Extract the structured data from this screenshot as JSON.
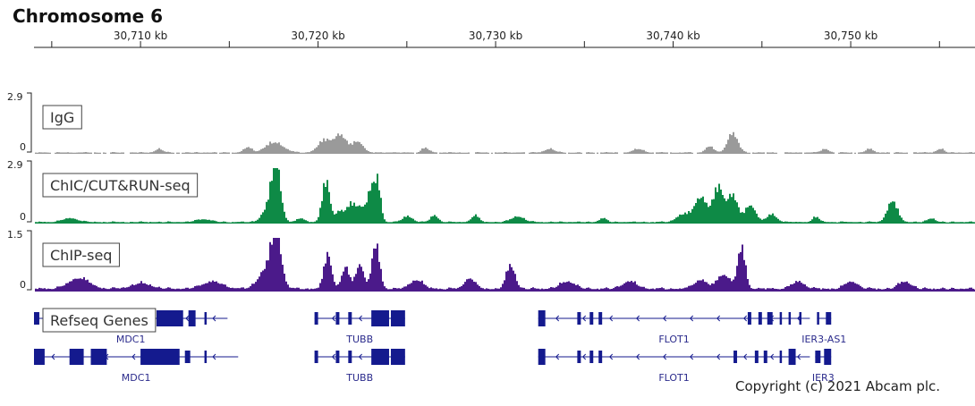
{
  "title": "Chromosome 6",
  "copyright": "Copyright (c) 2021 Abcam plc.",
  "colors": {
    "igg": "#9a9a9a",
    "chic": "#0e8a46",
    "chip": "#4b1a8a",
    "gene": "#141a8e"
  },
  "chart_data": {
    "type": "area",
    "x_unit": "kb",
    "xlim": [
      30704.0,
      30757.0
    ],
    "ruler_ticks": [
      {
        "value": 30710,
        "label": "30,710 kb"
      },
      {
        "value": 30720,
        "label": "30,720 kb"
      },
      {
        "value": 30730,
        "label": "30,730 kb"
      },
      {
        "value": 30740,
        "label": "30,740 kb"
      },
      {
        "value": 30750,
        "label": "30,750 kb"
      }
    ],
    "tracks": [
      {
        "name": "IgG",
        "color_key": "igg",
        "ymax_label": "2.9",
        "ymin_label": "0",
        "ymax": 2.9,
        "baseline": 0.1,
        "peaks": [
          {
            "x": 30711.0,
            "h": 0.2,
            "w": 0.3
          },
          {
            "x": 30716.0,
            "h": 0.3,
            "w": 0.3
          },
          {
            "x": 30717.5,
            "h": 0.55,
            "w": 0.7
          },
          {
            "x": 30720.3,
            "h": 0.65,
            "w": 0.5
          },
          {
            "x": 30721.2,
            "h": 0.95,
            "w": 0.5
          },
          {
            "x": 30722.2,
            "h": 0.6,
            "w": 0.4
          },
          {
            "x": 30726.0,
            "h": 0.25,
            "w": 0.3
          },
          {
            "x": 30733.0,
            "h": 0.2,
            "w": 0.4
          },
          {
            "x": 30738.0,
            "h": 0.2,
            "w": 0.4
          },
          {
            "x": 30742.0,
            "h": 0.35,
            "w": 0.3
          },
          {
            "x": 30743.3,
            "h": 1.05,
            "w": 0.4
          },
          {
            "x": 30748.5,
            "h": 0.2,
            "w": 0.3
          },
          {
            "x": 30751.0,
            "h": 0.2,
            "w": 0.3
          },
          {
            "x": 30755.0,
            "h": 0.2,
            "w": 0.3
          }
        ]
      },
      {
        "name": "ChIC/CUT&RUN-seq",
        "color_key": "chic",
        "ymax_label": "2.9",
        "ymin_label": "0",
        "ymax": 2.9,
        "baseline": 0.12,
        "peaks": [
          {
            "x": 30706.0,
            "h": 0.2,
            "w": 0.6
          },
          {
            "x": 30713.5,
            "h": 0.15,
            "w": 0.6
          },
          {
            "x": 30717.6,
            "h": 2.7,
            "w": 0.35
          },
          {
            "x": 30717.2,
            "h": 0.8,
            "w": 0.5
          },
          {
            "x": 30719.0,
            "h": 0.2,
            "w": 0.3
          },
          {
            "x": 30720.4,
            "h": 2.15,
            "w": 0.3
          },
          {
            "x": 30721.2,
            "h": 0.6,
            "w": 0.35
          },
          {
            "x": 30721.8,
            "h": 0.9,
            "w": 0.3
          },
          {
            "x": 30722.3,
            "h": 0.8,
            "w": 0.3
          },
          {
            "x": 30722.9,
            "h": 1.6,
            "w": 0.3
          },
          {
            "x": 30723.3,
            "h": 2.0,
            "w": 0.25
          },
          {
            "x": 30725.0,
            "h": 0.3,
            "w": 0.4
          },
          {
            "x": 30726.5,
            "h": 0.35,
            "w": 0.3
          },
          {
            "x": 30728.8,
            "h": 0.35,
            "w": 0.3
          },
          {
            "x": 30731.2,
            "h": 0.3,
            "w": 0.5
          },
          {
            "x": 30736.0,
            "h": 0.2,
            "w": 0.3
          },
          {
            "x": 30740.5,
            "h": 0.4,
            "w": 0.5
          },
          {
            "x": 30741.5,
            "h": 1.3,
            "w": 0.5
          },
          {
            "x": 30742.5,
            "h": 1.8,
            "w": 0.4
          },
          {
            "x": 30743.3,
            "h": 1.4,
            "w": 0.4
          },
          {
            "x": 30744.3,
            "h": 0.9,
            "w": 0.4
          },
          {
            "x": 30745.5,
            "h": 0.4,
            "w": 0.4
          },
          {
            "x": 30748.0,
            "h": 0.25,
            "w": 0.3
          },
          {
            "x": 30752.3,
            "h": 1.1,
            "w": 0.4
          },
          {
            "x": 30754.5,
            "h": 0.2,
            "w": 0.3
          }
        ]
      },
      {
        "name": "ChIP-seq",
        "color_key": "chip",
        "ymax_label": "1.5",
        "ymin_label": "0",
        "ymax": 1.5,
        "baseline": 0.12,
        "peaks": [
          {
            "x": 30706.5,
            "h": 0.3,
            "w": 0.8
          },
          {
            "x": 30710.0,
            "h": 0.15,
            "w": 0.8
          },
          {
            "x": 30714.0,
            "h": 0.2,
            "w": 0.8
          },
          {
            "x": 30717.6,
            "h": 1.45,
            "w": 0.4
          },
          {
            "x": 30717.0,
            "h": 0.5,
            "w": 0.6
          },
          {
            "x": 30720.5,
            "h": 0.95,
            "w": 0.3
          },
          {
            "x": 30721.5,
            "h": 0.6,
            "w": 0.3
          },
          {
            "x": 30722.3,
            "h": 0.7,
            "w": 0.3
          },
          {
            "x": 30723.2,
            "h": 1.25,
            "w": 0.3
          },
          {
            "x": 30725.5,
            "h": 0.25,
            "w": 0.5
          },
          {
            "x": 30728.5,
            "h": 0.3,
            "w": 0.4
          },
          {
            "x": 30730.8,
            "h": 0.65,
            "w": 0.35
          },
          {
            "x": 30734.0,
            "h": 0.2,
            "w": 0.6
          },
          {
            "x": 30737.5,
            "h": 0.2,
            "w": 0.6
          },
          {
            "x": 30741.5,
            "h": 0.25,
            "w": 0.5
          },
          {
            "x": 30742.8,
            "h": 0.4,
            "w": 0.5
          },
          {
            "x": 30743.8,
            "h": 1.15,
            "w": 0.3
          },
          {
            "x": 30747.0,
            "h": 0.2,
            "w": 0.5
          },
          {
            "x": 30750.0,
            "h": 0.2,
            "w": 0.5
          },
          {
            "x": 30753.0,
            "h": 0.2,
            "w": 0.5
          }
        ]
      }
    ],
    "genes_track": {
      "name": "Refseq Genes",
      "rows": [
        [
          {
            "name": "MDC1",
            "start": 30704.0,
            "end": 30714.9,
            "exons": [
              [
                30704.0,
                30704.3
              ],
              [
                30705.8,
                30706.6
              ],
              [
                30707.0,
                30710.5
              ],
              [
                30710.9,
                30712.4
              ],
              [
                30712.7,
                30713.1
              ],
              [
                30713.6,
                30713.7
              ]
            ]
          },
          {
            "name": "TUBB",
            "start": 30719.8,
            "end": 30724.9,
            "exons": [
              [
                30719.8,
                30720.0
              ],
              [
                30721.0,
                30721.2
              ],
              [
                30721.7,
                30721.9
              ],
              [
                30723.0,
                30724.0
              ],
              [
                30724.1,
                30724.9
              ]
            ]
          },
          {
            "name": "FLOT1",
            "start": 30732.4,
            "end": 30747.7,
            "exons": [
              [
                30732.4,
                30732.8
              ],
              [
                30734.6,
                30734.8
              ],
              [
                30735.3,
                30735.5
              ],
              [
                30735.8,
                30736.0
              ],
              [
                30744.2,
                30744.4
              ],
              [
                30744.8,
                30745.0
              ],
              [
                30745.3,
                30745.6
              ],
              [
                30746.0,
                30746.1
              ],
              [
                30746.5,
                30746.6
              ],
              [
                30747.1,
                30747.2
              ]
            ]
          },
          {
            "name": "IER3-AS1",
            "start": 30748.1,
            "end": 30748.9,
            "exons": [
              [
                30748.1,
                30748.2
              ],
              [
                30748.6,
                30748.9
              ]
            ]
          }
        ],
        [
          {
            "name": "MDC1",
            "start": 30704.0,
            "end": 30715.5,
            "exons": [
              [
                30704.0,
                30704.6
              ],
              [
                30706.0,
                30706.8
              ],
              [
                30707.2,
                30708.1
              ],
              [
                30710.0,
                30712.2
              ],
              [
                30712.5,
                30712.8
              ],
              [
                30713.6,
                30713.7
              ]
            ]
          },
          {
            "name": "TUBB",
            "start": 30719.8,
            "end": 30724.9,
            "exons": [
              [
                30719.8,
                30720.0
              ],
              [
                30721.0,
                30721.2
              ],
              [
                30721.7,
                30721.9
              ],
              [
                30723.0,
                30724.0
              ],
              [
                30724.1,
                30724.9
              ]
            ]
          },
          {
            "name": "FLOT1",
            "start": 30732.4,
            "end": 30747.7,
            "exons": [
              [
                30732.4,
                30732.8
              ],
              [
                30734.6,
                30734.8
              ],
              [
                30735.3,
                30735.5
              ],
              [
                30735.8,
                30736.0
              ],
              [
                30743.4,
                30743.6
              ],
              [
                30744.6,
                30744.8
              ],
              [
                30745.1,
                30745.3
              ],
              [
                30746.0,
                30746.1
              ],
              [
                30746.5,
                30746.9
              ]
            ]
          },
          {
            "name": "IER3",
            "start": 30748.0,
            "end": 30748.9,
            "exons": [
              [
                30748.0,
                30748.3
              ],
              [
                30748.5,
                30748.9
              ]
            ]
          }
        ]
      ]
    }
  }
}
